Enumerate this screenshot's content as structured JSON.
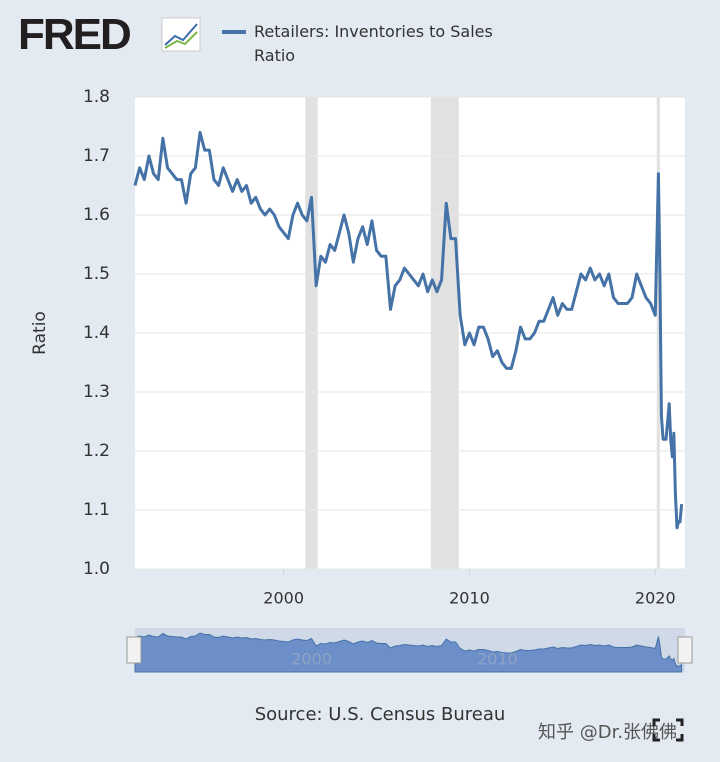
{
  "logo": "FRED",
  "watermark": "知乎 @Dr.张佛佛",
  "chart_data": {
    "type": "line",
    "legend": "Retailers: Inventories to Sales Ratio",
    "y_label": "Ratio",
    "source": "Source: U.S. Census Bureau",
    "grid": true,
    "xlim": [
      1992,
      2021.6
    ],
    "xticks": [
      2000,
      2010,
      2020
    ],
    "ylim": [
      1.0,
      1.8
    ],
    "yticks": [
      {
        "value": 1,
        "label": "1.0"
      },
      1.1,
      1.2,
      1.3,
      1.4,
      1.5,
      1.6,
      1.7,
      1.8
    ],
    "recessions": [
      [
        2001.17,
        2001.83
      ],
      [
        2007.92,
        2009.42
      ],
      [
        2020.08,
        2020.25
      ]
    ],
    "navigator_ticks": [
      2000,
      2010
    ],
    "series": [
      {
        "name": "Retailers: Inventories to Sales Ratio",
        "color": "#4572a7",
        "x": [
          1992.0,
          1992.25,
          1992.5,
          1992.75,
          1993.0,
          1993.25,
          1993.5,
          1993.75,
          1994.0,
          1994.25,
          1994.5,
          1994.75,
          1995.0,
          1995.25,
          1995.5,
          1995.75,
          1996.0,
          1996.25,
          1996.5,
          1996.75,
          1997.0,
          1997.25,
          1997.5,
          1997.75,
          1998.0,
          1998.25,
          1998.5,
          1998.75,
          1999.0,
          1999.25,
          1999.5,
          1999.75,
          2000.0,
          2000.25,
          2000.5,
          2000.75,
          2001.0,
          2001.25,
          2001.5,
          2001.75,
          2002.0,
          2002.25,
          2002.5,
          2002.75,
          2003.0,
          2003.25,
          2003.5,
          2003.75,
          2004.0,
          2004.25,
          2004.5,
          2004.75,
          2005.0,
          2005.25,
          2005.5,
          2005.75,
          2006.0,
          2006.25,
          2006.5,
          2006.75,
          2007.0,
          2007.25,
          2007.5,
          2007.75,
          2008.0,
          2008.25,
          2008.5,
          2008.75,
          2009.0,
          2009.25,
          2009.5,
          2009.75,
          2010.0,
          2010.25,
          2010.5,
          2010.75,
          2011.0,
          2011.25,
          2011.5,
          2011.75,
          2012.0,
          2012.25,
          2012.5,
          2012.75,
          2013.0,
          2013.25,
          2013.5,
          2013.75,
          2014.0,
          2014.25,
          2014.5,
          2014.75,
          2015.0,
          2015.25,
          2015.5,
          2015.75,
          2016.0,
          2016.25,
          2016.5,
          2016.75,
          2017.0,
          2017.25,
          2017.5,
          2017.75,
          2018.0,
          2018.25,
          2018.5,
          2018.75,
          2019.0,
          2019.25,
          2019.5,
          2019.75,
          2020.0,
          2020.17,
          2020.25,
          2020.33,
          2020.42,
          2020.58,
          2020.75,
          2020.83,
          2020.92,
          2021.0,
          2021.08,
          2021.17,
          2021.25,
          2021.33,
          2021.42
        ],
        "values": [
          1.65,
          1.68,
          1.66,
          1.7,
          1.67,
          1.66,
          1.73,
          1.68,
          1.67,
          1.66,
          1.66,
          1.62,
          1.67,
          1.68,
          1.74,
          1.71,
          1.71,
          1.66,
          1.65,
          1.68,
          1.66,
          1.64,
          1.66,
          1.64,
          1.65,
          1.62,
          1.63,
          1.61,
          1.6,
          1.61,
          1.6,
          1.58,
          1.57,
          1.56,
          1.6,
          1.62,
          1.6,
          1.59,
          1.63,
          1.48,
          1.53,
          1.52,
          1.55,
          1.54,
          1.57,
          1.6,
          1.57,
          1.52,
          1.56,
          1.58,
          1.55,
          1.59,
          1.54,
          1.53,
          1.53,
          1.44,
          1.48,
          1.49,
          1.51,
          1.5,
          1.49,
          1.48,
          1.5,
          1.47,
          1.49,
          1.47,
          1.49,
          1.62,
          1.56,
          1.56,
          1.43,
          1.38,
          1.4,
          1.38,
          1.41,
          1.41,
          1.39,
          1.36,
          1.37,
          1.35,
          1.34,
          1.34,
          1.37,
          1.41,
          1.39,
          1.39,
          1.4,
          1.42,
          1.42,
          1.44,
          1.46,
          1.43,
          1.45,
          1.44,
          1.44,
          1.47,
          1.5,
          1.49,
          1.51,
          1.49,
          1.5,
          1.48,
          1.5,
          1.46,
          1.45,
          1.45,
          1.45,
          1.46,
          1.5,
          1.48,
          1.46,
          1.45,
          1.43,
          1.67,
          1.5,
          1.26,
          1.22,
          1.22,
          1.28,
          1.22,
          1.19,
          1.23,
          1.13,
          1.07,
          1.08,
          1.08,
          1.11
        ]
      }
    ]
  }
}
